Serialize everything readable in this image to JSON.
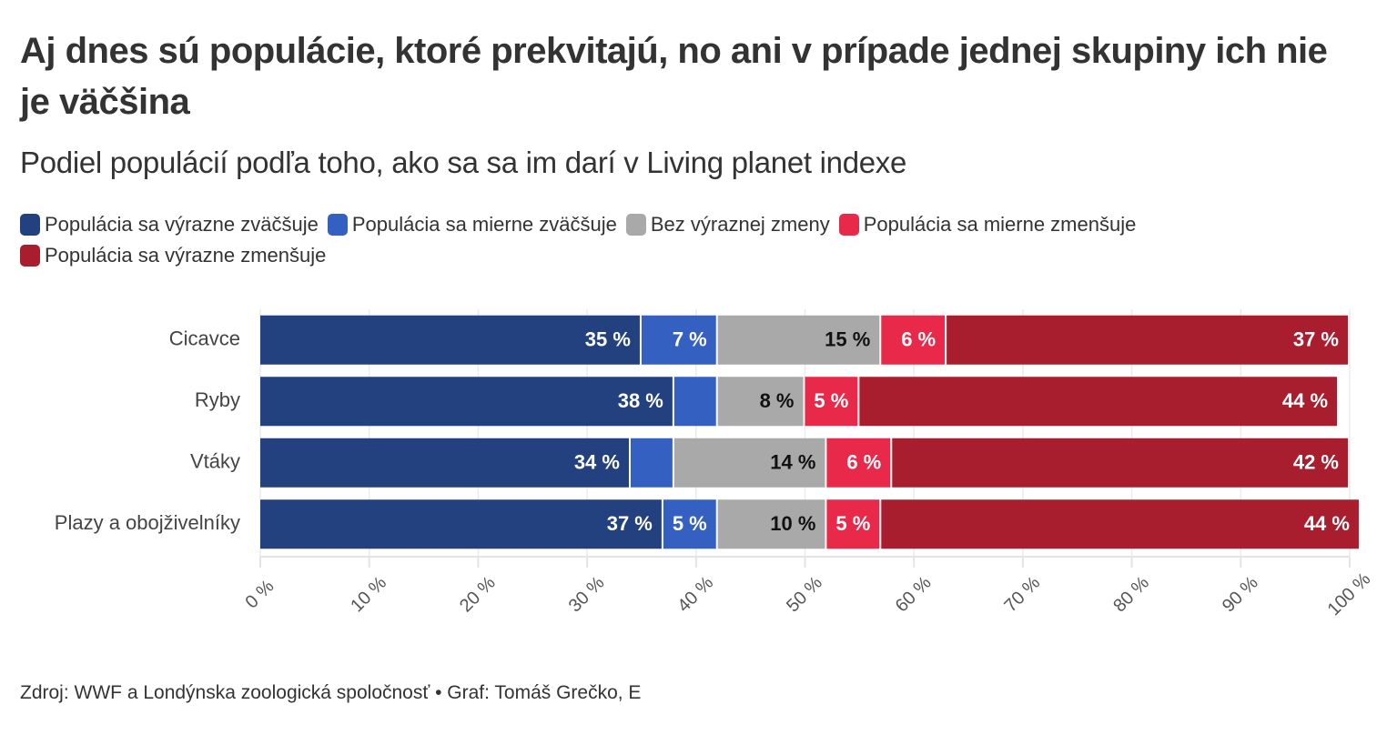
{
  "chart_data": {
    "type": "stacked-bar-horizontal",
    "title": "Aj dnes sú populácie, ktoré prekvitajú, no ani v prípade jednej skupiny ich nie je väčšina",
    "subtitle": "Podiel populácií podľa toho, ako sa sa im darí v Living planet indexe",
    "source": "Zdroj: WWF a Londýnska zoologická spoločnosť • Graf: Tomáš Grečko, E",
    "legend": "top",
    "grid": true,
    "categories": [
      "Cicavce",
      "Ryby",
      "Vtáky",
      "Plazy a obojživelníky"
    ],
    "series": [
      {
        "name": "Populácia sa výrazne zväčšuje",
        "color": "#23417f",
        "values": [
          35,
          38,
          34,
          37
        ],
        "value_labels": [
          "35 %",
          "38 %",
          "34 %",
          "37 %"
        ]
      },
      {
        "name": "Populácia sa mierne zväčšuje",
        "color": "#3461c1",
        "values": [
          7,
          4,
          4,
          5
        ],
        "value_labels": [
          "7 %",
          null,
          null,
          "5 %"
        ]
      },
      {
        "name": "Bez výraznej zmeny",
        "color": "#a9a9a9",
        "values": [
          15,
          8,
          14,
          10
        ],
        "value_labels": [
          "15 %",
          "8 %",
          "14 %",
          "10 %"
        ]
      },
      {
        "name": "Populácia sa mierne zmenšuje",
        "color": "#e8294a",
        "values": [
          6,
          5,
          6,
          5
        ],
        "value_labels": [
          "6 %",
          "5 %",
          "6 %",
          "5 %"
        ]
      },
      {
        "name": "Populácia sa výrazne zmenšuje",
        "color": "#a91e2f",
        "values": [
          37,
          44,
          42,
          44
        ],
        "value_labels": [
          "37 %",
          "44 %",
          "42 %",
          "44 %"
        ]
      }
    ],
    "xlim": [
      0,
      100
    ],
    "xticks": [
      {
        "value": 0,
        "label": "0 %"
      },
      {
        "value": 10,
        "label": "10 %"
      },
      {
        "value": 20,
        "label": "20 %"
      },
      {
        "value": 30,
        "label": "30 %"
      },
      {
        "value": 40,
        "label": "40 %"
      },
      {
        "value": 50,
        "label": "50 %"
      },
      {
        "value": 60,
        "label": "60 %"
      },
      {
        "value": 70,
        "label": "70 %"
      },
      {
        "value": 80,
        "label": "80 %"
      },
      {
        "value": 90,
        "label": "90 %"
      },
      {
        "value": 100,
        "label": "100 %"
      }
    ]
  }
}
